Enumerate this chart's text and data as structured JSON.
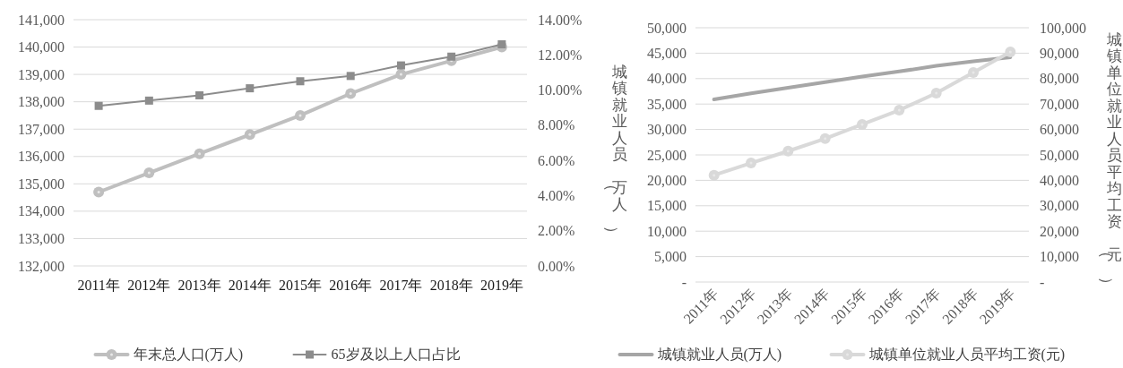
{
  "chart_data": [
    {
      "type": "line",
      "categories": [
        "2011年",
        "2012年",
        "2013年",
        "2014年",
        "2015年",
        "2016年",
        "2017年",
        "2018年",
        "2019年"
      ],
      "series": [
        {
          "name": "年末总人口(万人)",
          "color": "#bfbfbf",
          "marker": "circle",
          "values": [
            134700,
            135400,
            136100,
            136800,
            137500,
            138300,
            139000,
            139500,
            140000
          ]
        },
        {
          "name": "65岁及以上人口占比",
          "color": "#8c8c8c",
          "marker": "square",
          "axis": "y2",
          "values": [
            9.1,
            9.4,
            9.7,
            10.1,
            10.5,
            10.8,
            11.4,
            11.9,
            12.6
          ]
        }
      ],
      "ylim": [
        132000,
        141000
      ],
      "yticks": [
        {
          "value": 132000,
          "label": "132,000"
        },
        {
          "value": 133000,
          "label": "133,000"
        },
        {
          "value": 134000,
          "label": "134,000"
        },
        {
          "value": 135000,
          "label": "135,000"
        },
        {
          "value": 136000,
          "label": "136,000"
        },
        {
          "value": 137000,
          "label": "137,000"
        },
        {
          "value": 138000,
          "label": "138,000"
        },
        {
          "value": 139000,
          "label": "139,000"
        },
        {
          "value": 140000,
          "label": "140,000"
        },
        {
          "value": 141000,
          "label": "141,000"
        }
      ],
      "y2lim": [
        0,
        14
      ],
      "y2ticks": [
        {
          "value": 0,
          "label": "0.00%"
        },
        {
          "value": 2,
          "label": "2.00%"
        },
        {
          "value": 4,
          "label": "4.00%"
        },
        {
          "value": 6,
          "label": "6.00%"
        },
        {
          "value": 8,
          "label": "8.00%"
        },
        {
          "value": 10,
          "label": "10.00%"
        },
        {
          "value": 12,
          "label": "12.00%"
        },
        {
          "value": 14,
          "label": "14.00%"
        }
      ],
      "grid": "y",
      "legend": "bottom"
    },
    {
      "type": "line",
      "categories": [
        "2011年",
        "2012年",
        "2013年",
        "2014年",
        "2015年",
        "2016年",
        "2017年",
        "2018年",
        "2019年"
      ],
      "series": [
        {
          "name": "城镇就业人员(万人)",
          "color": "#a6a6a6",
          "marker": "none",
          "values": [
            35900,
            37100,
            38200,
            39300,
            40400,
            41400,
            42500,
            43400,
            44200
          ]
        },
        {
          "name": "城镇单位就业人员平均工资(元)",
          "color": "#d9d9d9",
          "marker": "circle",
          "axis": "y2",
          "values": [
            42000,
            46800,
            51500,
            56400,
            62000,
            67600,
            74300,
            82400,
            90500
          ]
        }
      ],
      "ylabel": "城镇就业人员（万人）",
      "y2label": "城镇单位就业人员平均工资（元）",
      "ylim": [
        0,
        50000
      ],
      "yticks": [
        {
          "value": 0,
          "label": "-"
        },
        {
          "value": 5000,
          "label": "5,000"
        },
        {
          "value": 10000,
          "label": "10,000"
        },
        {
          "value": 15000,
          "label": "15,000"
        },
        {
          "value": 20000,
          "label": "20,000"
        },
        {
          "value": 25000,
          "label": "25,000"
        },
        {
          "value": 30000,
          "label": "30,000"
        },
        {
          "value": 35000,
          "label": "35,000"
        },
        {
          "value": 40000,
          "label": "40,000"
        },
        {
          "value": 45000,
          "label": "45,000"
        },
        {
          "value": 50000,
          "label": "50,000"
        }
      ],
      "y2lim": [
        0,
        100000
      ],
      "y2ticks": [
        {
          "value": 0,
          "label": "-"
        },
        {
          "value": 10000,
          "label": "10,000"
        },
        {
          "value": 20000,
          "label": "20,000"
        },
        {
          "value": 30000,
          "label": "30,000"
        },
        {
          "value": 40000,
          "label": "40,000"
        },
        {
          "value": 50000,
          "label": "50,000"
        },
        {
          "value": 60000,
          "label": "60,000"
        },
        {
          "value": 70000,
          "label": "70,000"
        },
        {
          "value": 80000,
          "label": "80,000"
        },
        {
          "value": 90000,
          "label": "90,000"
        },
        {
          "value": 100000,
          "label": "100,000"
        }
      ],
      "grid": "y",
      "legend": "bottom"
    }
  ]
}
